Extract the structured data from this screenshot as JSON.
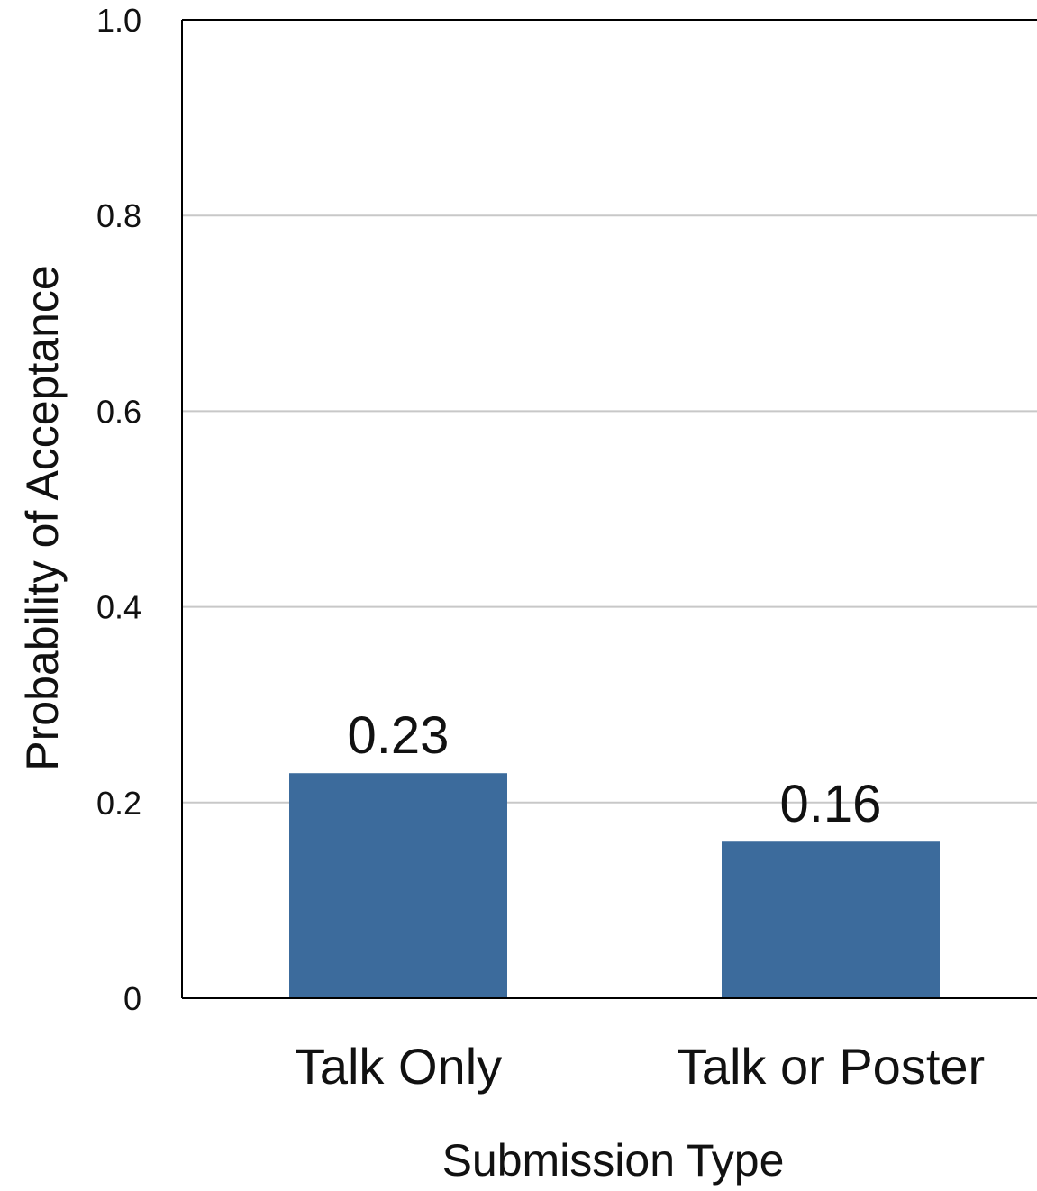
{
  "chart_data": {
    "type": "bar",
    "title": "",
    "xlabel": "Submission Type",
    "ylabel": "Probability of Acceptance",
    "categories": [
      "Talk Only",
      "Talk or Poster"
    ],
    "values": [
      0.23,
      0.16
    ],
    "data_labels": [
      "0.23",
      "0.16"
    ],
    "ylim": [
      0,
      1.0
    ],
    "yticks": [
      0,
      0.2,
      0.4,
      0.6,
      0.8,
      1.0
    ],
    "ytick_labels": [
      "0",
      "0.2",
      "0.4",
      "0.6",
      "0.8",
      "1.0"
    ],
    "grid": true,
    "legend": "none",
    "bar_color": "#3c6b9c",
    "grid_color": "#c8c8c8"
  }
}
